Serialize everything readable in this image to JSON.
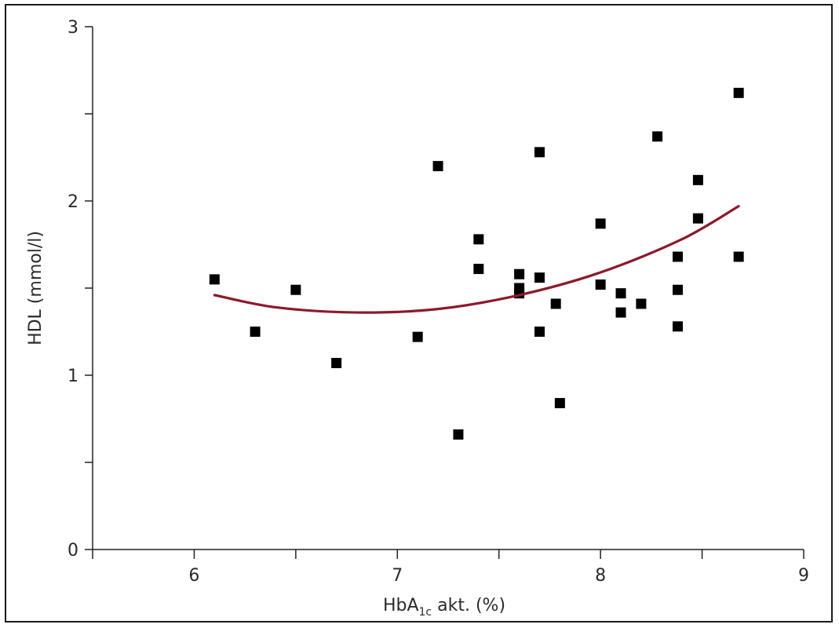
{
  "chart_data": {
    "type": "scatter",
    "xlabel": "HbA",
    "xlabel_subscript": "1c",
    "xlabel_suffix": " akt. (%)",
    "ylabel": "HDL (mmol/l)",
    "xlim": [
      5.5,
      9
    ],
    "ylim": [
      0,
      3
    ],
    "x_ticks": [
      6,
      7,
      8,
      9
    ],
    "y_ticks": [
      0,
      1,
      2,
      3
    ],
    "x_minor_ticks": [
      5.5,
      6,
      6.5,
      7,
      7.5,
      8,
      8.5,
      9
    ],
    "y_minor_ticks": [
      0,
      0.5,
      1,
      1.5,
      2,
      2.5,
      3
    ],
    "grid": false,
    "marker_color": "#000000",
    "trend_color": "#8B1A2B",
    "points": [
      {
        "x": 6.1,
        "y": 1.55
      },
      {
        "x": 6.3,
        "y": 1.25
      },
      {
        "x": 6.5,
        "y": 1.49
      },
      {
        "x": 6.7,
        "y": 1.07
      },
      {
        "x": 7.1,
        "y": 1.22
      },
      {
        "x": 7.2,
        "y": 2.2
      },
      {
        "x": 7.3,
        "y": 0.66
      },
      {
        "x": 7.4,
        "y": 1.78
      },
      {
        "x": 7.4,
        "y": 1.61
      },
      {
        "x": 7.6,
        "y": 1.58
      },
      {
        "x": 7.6,
        "y": 1.5
      },
      {
        "x": 7.6,
        "y": 1.47
      },
      {
        "x": 7.7,
        "y": 2.28
      },
      {
        "x": 7.7,
        "y": 1.56
      },
      {
        "x": 7.7,
        "y": 1.25
      },
      {
        "x": 7.78,
        "y": 1.41
      },
      {
        "x": 7.8,
        "y": 0.84
      },
      {
        "x": 8.0,
        "y": 1.87
      },
      {
        "x": 8.0,
        "y": 1.52
      },
      {
        "x": 8.1,
        "y": 1.47
      },
      {
        "x": 8.1,
        "y": 1.36
      },
      {
        "x": 8.2,
        "y": 1.41
      },
      {
        "x": 8.28,
        "y": 2.37
      },
      {
        "x": 8.38,
        "y": 1.68
      },
      {
        "x": 8.38,
        "y": 1.49
      },
      {
        "x": 8.38,
        "y": 1.28
      },
      {
        "x": 8.48,
        "y": 2.12
      },
      {
        "x": 8.48,
        "y": 1.9
      },
      {
        "x": 8.68,
        "y": 2.62
      },
      {
        "x": 8.68,
        "y": 1.68
      }
    ],
    "trend_curve": {
      "type": "quadratic",
      "x": [
        6.1,
        6.4,
        6.8,
        7.2,
        7.6,
        8.0,
        8.4,
        8.68
      ],
      "y": [
        1.46,
        1.39,
        1.36,
        1.38,
        1.46,
        1.59,
        1.78,
        1.97
      ]
    }
  }
}
